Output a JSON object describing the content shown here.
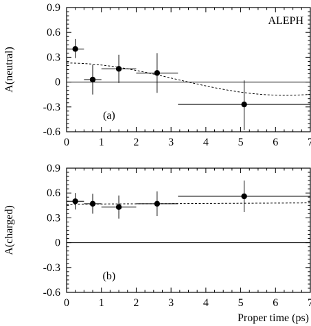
{
  "chart_data": [
    {
      "id": "a",
      "type": "scatter",
      "panel_label": "(a)",
      "annotation": "ALEPH",
      "ylabel": "A(neutral)",
      "xlabel": "",
      "xlim": [
        0,
        7
      ],
      "ylim": [
        -0.6,
        0.9
      ],
      "x_ticks": [
        0,
        1,
        2,
        3,
        4,
        5,
        6,
        7
      ],
      "y_ticks": [
        -0.6,
        -0.3,
        0,
        0.3,
        0.6,
        0.9
      ],
      "x_tick_labels": [
        "0",
        "1",
        "2",
        "3",
        "4",
        "5",
        "6",
        "7"
      ],
      "y_tick_labels": [
        "-0.6",
        "-0.3",
        "0",
        "0.3",
        "0.6",
        "0.9"
      ],
      "reference_line": 0,
      "points": [
        {
          "x": 0.25,
          "y": 0.4,
          "xlo": 0.0,
          "xhi": 0.5,
          "ylo": 0.29,
          "yhi": 0.52
        },
        {
          "x": 0.75,
          "y": 0.03,
          "xlo": 0.5,
          "xhi": 1.0,
          "ylo": -0.15,
          "yhi": 0.21
        },
        {
          "x": 1.5,
          "y": 0.16,
          "xlo": 1.0,
          "xhi": 2.0,
          "ylo": -0.01,
          "yhi": 0.33
        },
        {
          "x": 2.6,
          "y": 0.11,
          "xlo": 2.0,
          "xhi": 3.2,
          "ylo": -0.13,
          "yhi": 0.35
        },
        {
          "x": 5.1,
          "y": -0.27,
          "xlo": 3.2,
          "xhi": 7.0,
          "ylo": -0.58,
          "yhi": 0.02
        }
      ],
      "fit_curve": {
        "style": "dashed",
        "model": "0.035 + 0.195*cos(0.5*t)"
      }
    },
    {
      "id": "b",
      "type": "scatter",
      "panel_label": "(b)",
      "ylabel": "A(charged)",
      "xlabel": "Proper time (ps)",
      "xlim": [
        0,
        7
      ],
      "ylim": [
        -0.6,
        0.9
      ],
      "x_ticks": [
        0,
        1,
        2,
        3,
        4,
        5,
        6,
        7
      ],
      "y_ticks": [
        -0.6,
        -0.3,
        0,
        0.3,
        0.6,
        0.9
      ],
      "x_tick_labels": [
        "0",
        "1",
        "2",
        "3",
        "4",
        "5",
        "6",
        "7"
      ],
      "y_tick_labels": [
        "-0.6",
        "-0.3",
        "0",
        "0.3",
        "0.6",
        "0.9"
      ],
      "reference_line": 0,
      "points": [
        {
          "x": 0.25,
          "y": 0.5,
          "xlo": 0.0,
          "xhi": 0.5,
          "ylo": 0.4,
          "yhi": 0.6
        },
        {
          "x": 0.75,
          "y": 0.47,
          "xlo": 0.5,
          "xhi": 1.0,
          "ylo": 0.35,
          "yhi": 0.59
        },
        {
          "x": 1.5,
          "y": 0.43,
          "xlo": 1.0,
          "xhi": 2.0,
          "ylo": 0.29,
          "yhi": 0.57
        },
        {
          "x": 2.6,
          "y": 0.47,
          "xlo": 2.0,
          "xhi": 3.2,
          "ylo": 0.32,
          "yhi": 0.62
        },
        {
          "x": 5.1,
          "y": 0.56,
          "xlo": 3.2,
          "xhi": 7.0,
          "ylo": 0.37,
          "yhi": 0.75
        }
      ],
      "fit_curve": {
        "style": "dashed",
        "model": "0.465 + 0.0022*t"
      }
    }
  ]
}
